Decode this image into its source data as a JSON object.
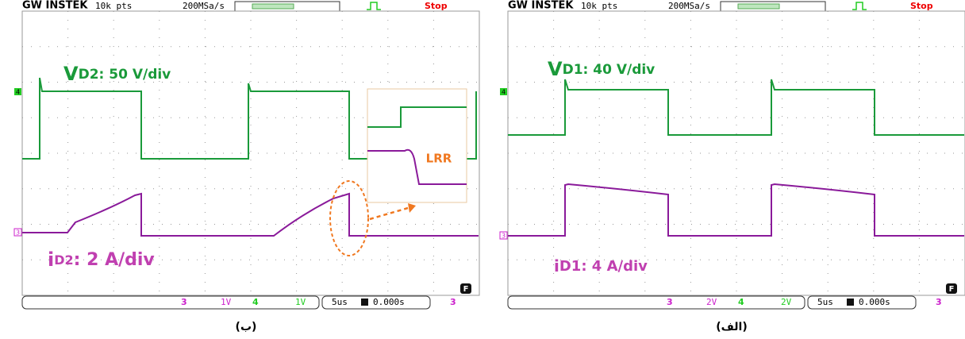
{
  "panels": [
    {
      "header": {
        "brand": "GW INSTEK",
        "points": "10k pts",
        "sample_rate": "200MSa/s",
        "status": "Stop"
      },
      "voltage_label": {
        "main": "V",
        "sub": "D2",
        "scale": ": 50 V/div"
      },
      "current_label": {
        "main": "i",
        "sub": "D2",
        "scale": ": 2 A/div"
      },
      "annotation": "LRR",
      "channel_markers": [
        "4",
        "3"
      ],
      "footer": {
        "ch3_scale": "1V",
        "ch4_scale": "1V",
        "timebase": "5us",
        "position": "0.000s",
        "mode": "F"
      },
      "caption": "(ب)"
    },
    {
      "header": {
        "brand": "GW INSTEK",
        "points": "10k pts",
        "sample_rate": "200MSa/s",
        "status": "Stop"
      },
      "voltage_label": {
        "main": "V",
        "sub": "D1",
        "scale": ": 40 V/div"
      },
      "current_label": {
        "main": "i",
        "sub": "D1",
        "scale": ": 4 A/div"
      },
      "channel_markers": [
        "4",
        "3"
      ],
      "footer": {
        "ch3_scale": "2V",
        "ch4_scale": "2V",
        "timebase": "5us",
        "position": "0.000s",
        "mode": "F"
      },
      "caption": "(الف)"
    }
  ]
}
